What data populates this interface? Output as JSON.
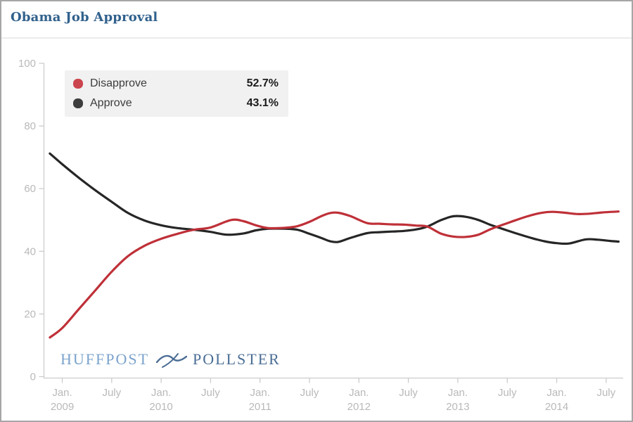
{
  "header": {
    "title": "Obama Job Approval"
  },
  "legend": {
    "items": [
      {
        "label": "Disapprove",
        "value": "52.7%"
      },
      {
        "label": "Approve",
        "value": "43.1%"
      }
    ]
  },
  "logo": {
    "part1": "HUFFPOST",
    "part2": "POLLSTER"
  },
  "colors": {
    "title": "#31618c",
    "disapprove_line": "#bf3038",
    "approve_line": "#262626",
    "disapprove_swatch": "#cb454e",
    "approve_swatch": "#3d3d3d",
    "axis": "#cccccc",
    "tick_label": "#b9b9b9",
    "legend_bg": "#f1f1f1",
    "logo_huffpost": "#7ba3cc",
    "logo_pollster": "#4a6d94"
  },
  "chart_data": {
    "type": "line",
    "title": "Obama Job Approval",
    "xlabel": "",
    "ylabel": "",
    "ylim": [
      0,
      100
    ],
    "grid": false,
    "legend_position": "top-left",
    "y_ticks": [
      0,
      20,
      40,
      60,
      80,
      100
    ],
    "x_unit": "months since Jan 2009",
    "x_ticks": [
      {
        "m": 0,
        "line1": "Jan.",
        "line2": "2009"
      },
      {
        "m": 6,
        "line1": "July",
        "line2": ""
      },
      {
        "m": 12,
        "line1": "Jan.",
        "line2": "2010"
      },
      {
        "m": 18,
        "line1": "July",
        "line2": ""
      },
      {
        "m": 24,
        "line1": "Jan.",
        "line2": "2011"
      },
      {
        "m": 30,
        "line1": "July",
        "line2": ""
      },
      {
        "m": 36,
        "line1": "Jan.",
        "line2": "2012"
      },
      {
        "m": 42,
        "line1": "July",
        "line2": ""
      },
      {
        "m": 48,
        "line1": "Jan.",
        "line2": "2013"
      },
      {
        "m": 54,
        "line1": "July",
        "line2": ""
      },
      {
        "m": 60,
        "line1": "Jan.",
        "line2": "2014"
      },
      {
        "m": 66,
        "line1": "July",
        "line2": ""
      }
    ],
    "series": [
      {
        "name": "Approve",
        "end_value": 43.1,
        "x": [
          -1.5,
          0,
          2,
          4,
          6,
          8,
          10,
          12,
          14,
          16,
          18,
          20,
          22,
          23.5,
          25,
          27,
          28.5,
          30,
          31.5,
          32.5,
          33.5,
          35,
          37,
          38.5,
          40,
          41.5,
          43,
          44.3,
          46,
          47.5,
          49,
          50.5,
          52,
          53.5,
          55,
          57,
          58.5,
          60,
          61.5,
          63.5,
          65,
          66.5,
          67.5
        ],
        "values": [
          71.2,
          67.8,
          63.5,
          59.5,
          55.8,
          52.2,
          49.8,
          48.3,
          47.4,
          46.9,
          46.2,
          45.3,
          45.7,
          46.7,
          47.2,
          47.2,
          46.9,
          45.6,
          44.2,
          43.2,
          43.0,
          44.3,
          45.8,
          46.1,
          46.3,
          46.5,
          47.0,
          47.9,
          50.0,
          51.2,
          51.0,
          50.0,
          48.4,
          47.1,
          45.8,
          44.2,
          43.2,
          42.6,
          42.5,
          43.8,
          43.7,
          43.3,
          43.1
        ]
      },
      {
        "name": "Disapprove",
        "end_value": 52.7,
        "x": [
          -1.5,
          0,
          2,
          4,
          6,
          8,
          10,
          12,
          14,
          16,
          18,
          20.5,
          22,
          23.5,
          25,
          27,
          28.5,
          30,
          31.5,
          32.5,
          33.5,
          35,
          37,
          38.5,
          40,
          41.5,
          43,
          44.3,
          46,
          47.5,
          49,
          50.5,
          52,
          53.5,
          55,
          56.5,
          58,
          59.5,
          61,
          62.5,
          64,
          65.5,
          67.5
        ],
        "values": [
          12.5,
          15.5,
          21.5,
          27.5,
          33.5,
          38.5,
          41.8,
          44.0,
          45.6,
          46.9,
          47.6,
          50.0,
          49.6,
          48.3,
          47.4,
          47.5,
          48.0,
          49.4,
          51.3,
          52.2,
          52.3,
          51.2,
          49.0,
          48.8,
          48.6,
          48.5,
          48.2,
          47.9,
          45.6,
          44.7,
          44.6,
          45.3,
          47.1,
          48.5,
          49.9,
          51.2,
          52.2,
          52.6,
          52.3,
          51.9,
          52.0,
          52.4,
          52.7
        ]
      }
    ]
  }
}
